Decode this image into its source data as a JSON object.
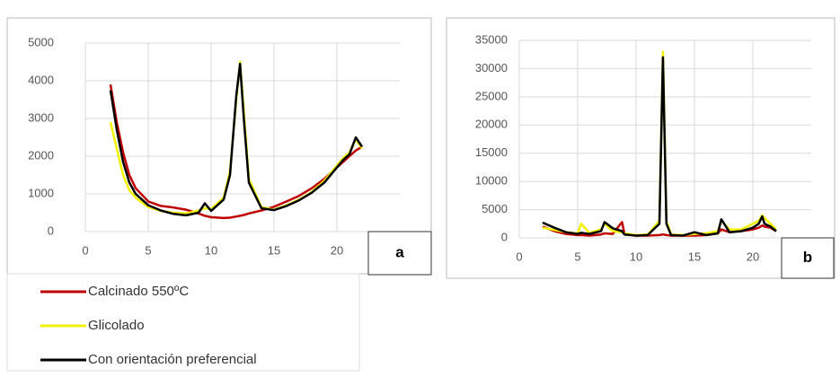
{
  "chart_data": [
    {
      "type": "line",
      "panel_label": "a",
      "x": [
        2,
        2.5,
        3,
        3.5,
        4,
        5,
        6,
        7,
        8,
        9,
        9.5,
        10,
        11,
        11.5,
        12,
        12.3,
        12.6,
        13,
        14,
        15,
        16,
        17,
        18,
        19,
        20,
        20.5,
        21,
        21.5,
        22
      ],
      "xlim": [
        0,
        25
      ],
      "xticks": [
        0,
        5,
        10,
        15,
        20
      ],
      "ylim": [
        0,
        5000
      ],
      "yticks": [
        0,
        1000,
        2000,
        3000,
        4000,
        5000
      ],
      "grid": true,
      "series": [
        {
          "name": "Calcinado 550ºC",
          "color": "#c00000",
          "values": [
            3900,
            2900,
            2100,
            1500,
            1150,
            800,
            680,
            640,
            580,
            480,
            420,
            380,
            360,
            370,
            400,
            420,
            440,
            480,
            560,
            660,
            800,
            950,
            1150,
            1400,
            1700,
            1850,
            2000,
            2150,
            2250
          ]
        },
        {
          "name": "Glicolado",
          "color": "#f2f200",
          "values": [
            2900,
            2200,
            1500,
            1100,
            900,
            650,
            550,
            500,
            480,
            560,
            620,
            600,
            900,
            1600,
            3500,
            4500,
            3200,
            1400,
            650,
            580,
            700,
            850,
            1050,
            1350,
            1750,
            1950,
            2100,
            2450,
            2200
          ]
        },
        {
          "name": "Con orientación preferencial",
          "color": "#000000",
          "values": [
            3750,
            2700,
            1850,
            1300,
            1000,
            700,
            560,
            470,
            430,
            500,
            750,
            550,
            850,
            1500,
            3600,
            4450,
            3000,
            1300,
            620,
            570,
            680,
            830,
            1030,
            1300,
            1700,
            1900,
            2050,
            2500,
            2250
          ]
        }
      ]
    },
    {
      "type": "line",
      "panel_label": "b",
      "x": [
        2,
        3,
        4,
        5,
        5.3,
        6,
        7,
        7.3,
        8,
        8.8,
        9,
        10,
        11,
        12,
        12.3,
        12.6,
        13,
        14,
        15,
        16,
        17,
        17.3,
        18,
        19,
        20,
        20.5,
        20.8,
        21,
        21.5,
        22
      ],
      "xlim": [
        0,
        25
      ],
      "xticks": [
        0,
        5,
        10,
        15,
        20
      ],
      "ylim": [
        0,
        35000
      ],
      "yticks": [
        0,
        5000,
        10000,
        15000,
        20000,
        25000,
        30000,
        35000
      ],
      "grid": true,
      "series": [
        {
          "color": "#c00000",
          "values": [
            2000,
            1200,
            700,
            500,
            500,
            400,
            600,
            800,
            700,
            2800,
            800,
            400,
            400,
            500,
            600,
            500,
            400,
            400,
            400,
            500,
            800,
            1500,
            1000,
            1200,
            1500,
            1800,
            2200,
            2000,
            1800,
            1200
          ]
        },
        {
          "color": "#f2f200",
          "values": [
            1800,
            1400,
            1000,
            800,
            2500,
            900,
            1500,
            2500,
            1200,
            1000,
            800,
            500,
            600,
            3000,
            33000,
            3000,
            600,
            500,
            700,
            800,
            1200,
            3000,
            1500,
            1500,
            2500,
            3000,
            4000,
            3500,
            2500,
            1500
          ]
        },
        {
          "color": "#000000",
          "values": [
            2700,
            1800,
            1000,
            700,
            900,
            700,
            1200,
            2800,
            1700,
            1200,
            600,
            400,
            500,
            2500,
            32000,
            2500,
            500,
            400,
            1000,
            500,
            800,
            3300,
            1000,
            1200,
            1800,
            2500,
            3800,
            2500,
            2000,
            1200
          ]
        }
      ]
    }
  ]
}
